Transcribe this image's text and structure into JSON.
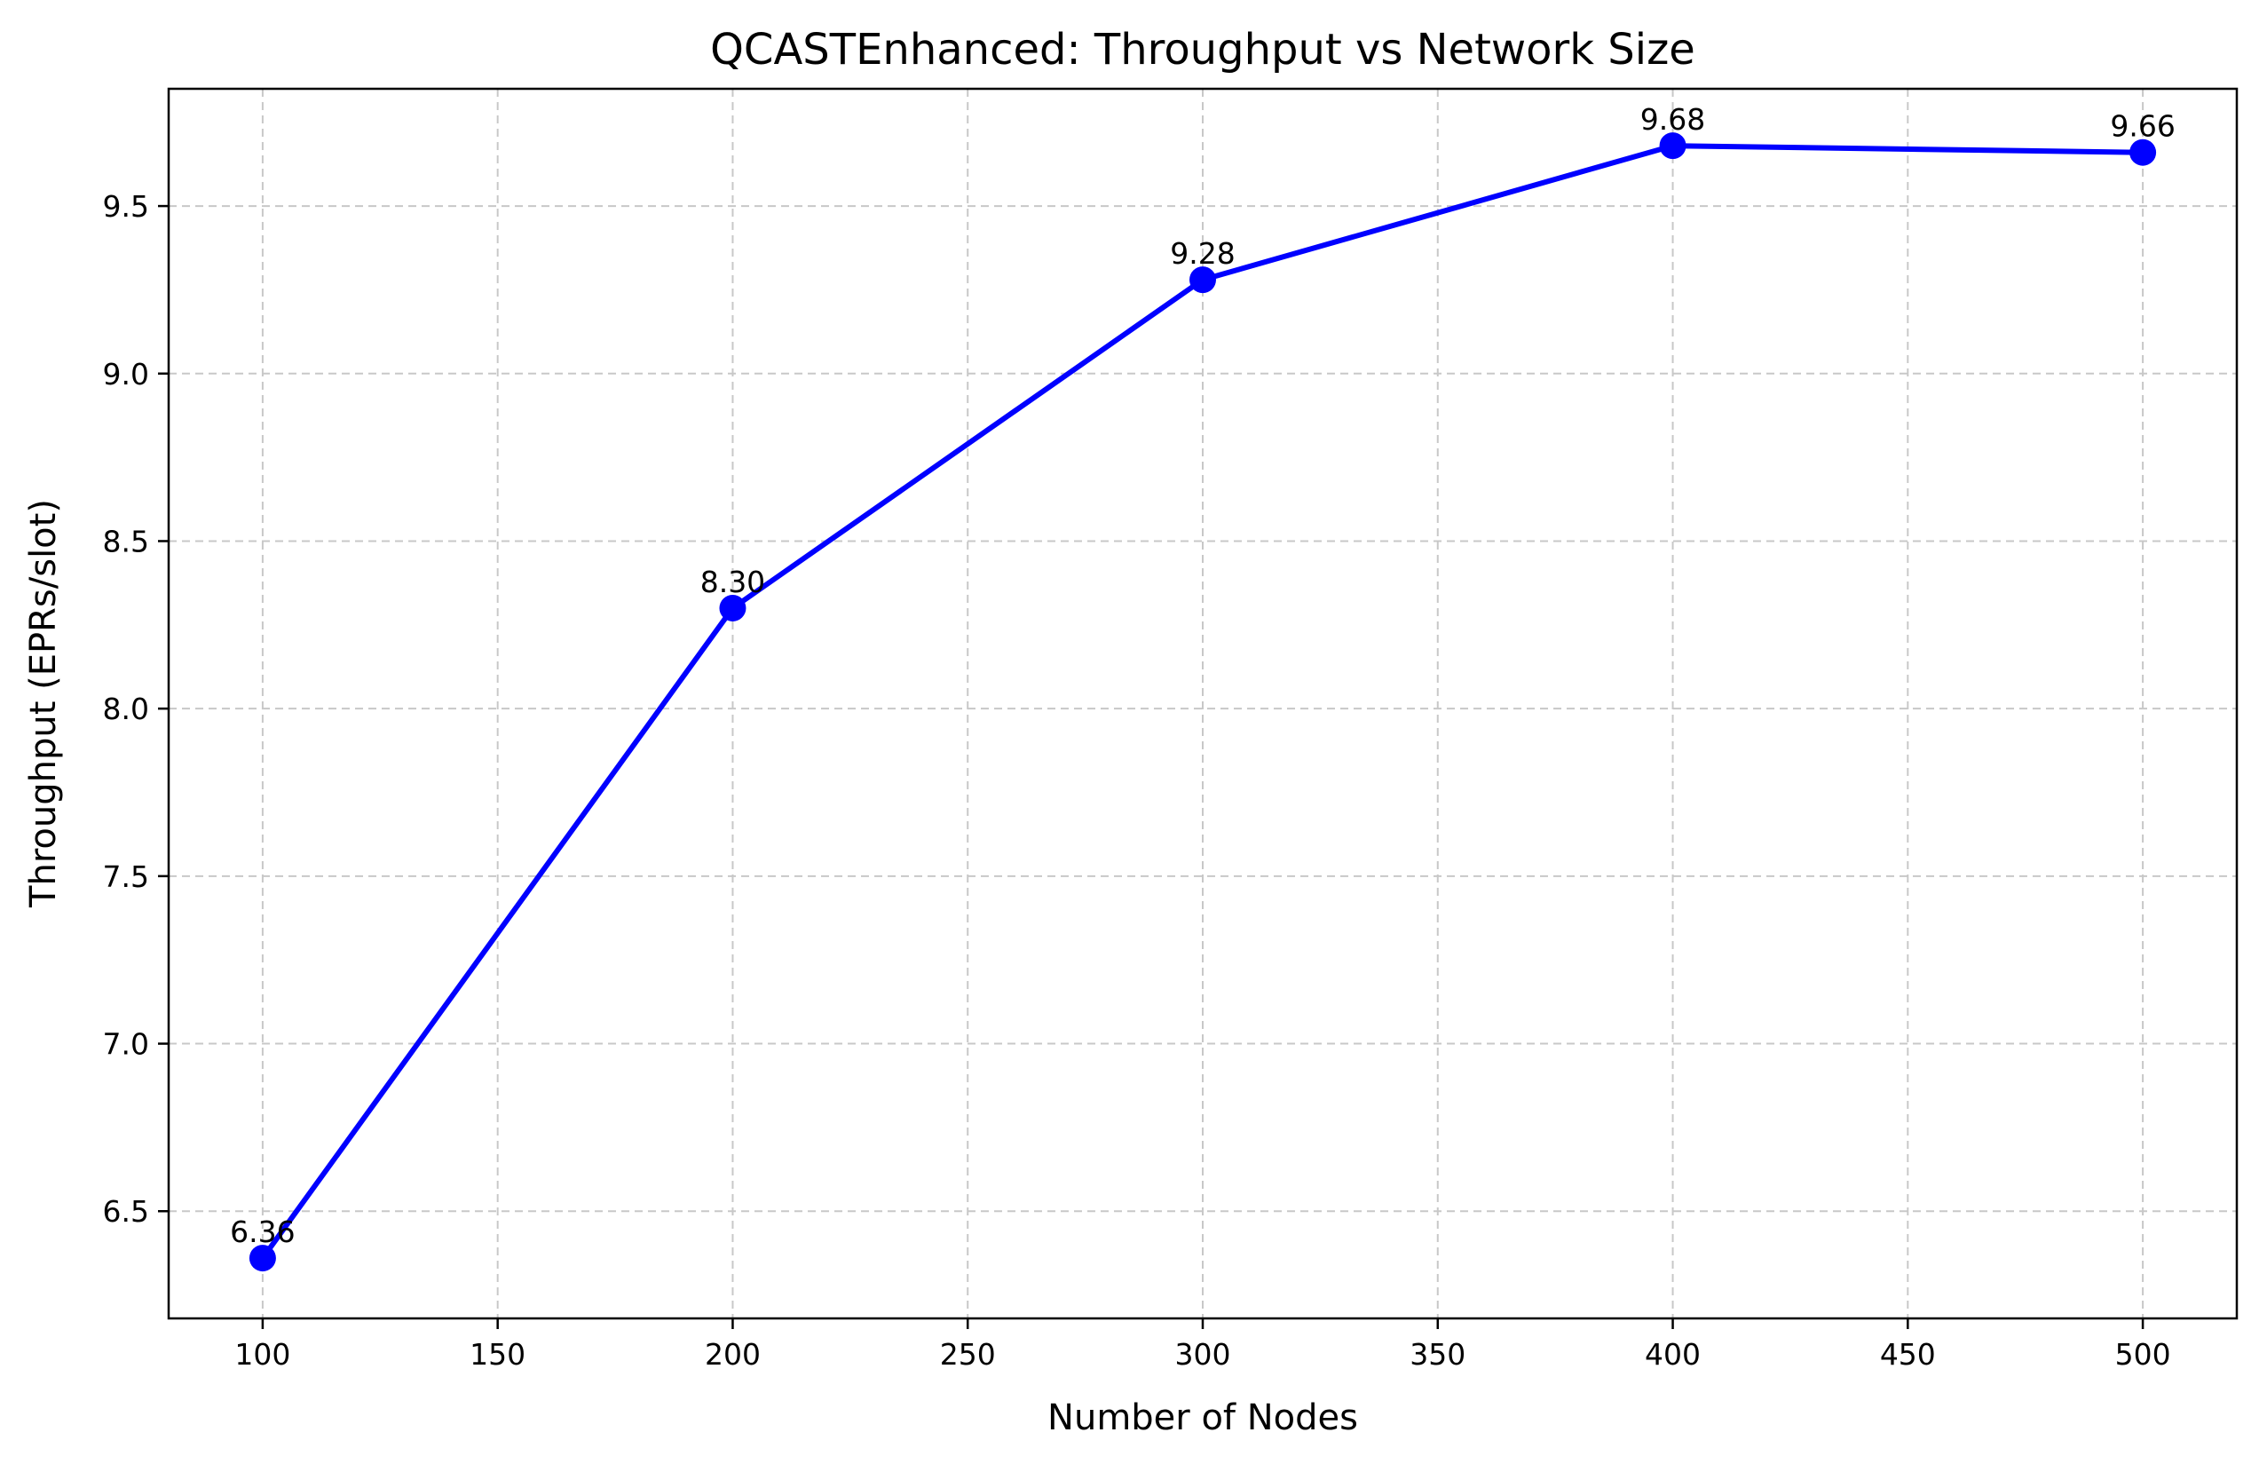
{
  "chart_data": {
    "type": "line",
    "title": "QCASTEnhanced: Throughput vs Network Size",
    "xlabel": "Number of Nodes",
    "ylabel": "Throughput (EPRs/slot)",
    "x": [
      100,
      200,
      300,
      400,
      500
    ],
    "series": [
      {
        "values": [
          6.36,
          8.3,
          9.28,
          9.68,
          9.66
        ],
        "data_labels": [
          "6.36",
          "8.30",
          "9.28",
          "9.68",
          "9.66"
        ],
        "color": "#0000ff",
        "marker": "circle"
      }
    ],
    "xlim": [
      80,
      520
    ],
    "ylim": [
      6.18,
      9.85
    ],
    "xticks": [
      100,
      150,
      200,
      250,
      300,
      350,
      400,
      450,
      500
    ],
    "xtick_labels": [
      "100",
      "150",
      "200",
      "250",
      "300",
      "350",
      "400",
      "450",
      "500"
    ],
    "yticks": [
      6.5,
      7.0,
      7.5,
      8.0,
      8.5,
      9.0,
      9.5
    ],
    "ytick_labels": [
      "6.5",
      "7.0",
      "7.5",
      "8.0",
      "8.5",
      "9.0",
      "9.5"
    ],
    "grid": true,
    "grid_style": "dashed"
  }
}
